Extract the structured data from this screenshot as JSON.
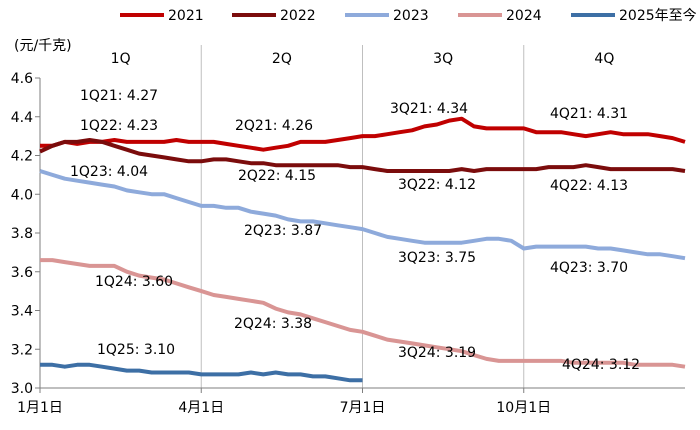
{
  "chart_data": {
    "type": "line",
    "ylabel": "(元/千克)",
    "ylim": [
      3.0,
      4.6
    ],
    "yticks": [
      "3.0",
      "3.2",
      "3.4",
      "3.6",
      "3.8",
      "4.0",
      "4.2",
      "4.4",
      "4.6"
    ],
    "xlim_week": [
      0,
      52
    ],
    "xticks": [
      {
        "label": "1月1日",
        "week": 0
      },
      {
        "label": "4月1日",
        "week": 13
      },
      {
        "label": "7月1日",
        "week": 26
      },
      {
        "label": "10月1日",
        "week": 39
      }
    ],
    "quarters": [
      "1Q",
      "2Q",
      "3Q",
      "4Q"
    ],
    "legend_position": "top",
    "series": [
      {
        "name": "2021",
        "color": "#c00000",
        "values": [
          4.25,
          4.25,
          4.27,
          4.26,
          4.27,
          4.27,
          4.28,
          4.27,
          4.27,
          4.27,
          4.27,
          4.28,
          4.27,
          4.27,
          4.27,
          4.26,
          4.25,
          4.24,
          4.23,
          4.24,
          4.25,
          4.27,
          4.27,
          4.27,
          4.28,
          4.29,
          4.3,
          4.3,
          4.31,
          4.32,
          4.33,
          4.35,
          4.36,
          4.38,
          4.39,
          4.35,
          4.34,
          4.34,
          4.34,
          4.34,
          4.32,
          4.32,
          4.32,
          4.31,
          4.3,
          4.31,
          4.32,
          4.31,
          4.31,
          4.31,
          4.3,
          4.29,
          4.27
        ]
      },
      {
        "name": "2022",
        "color": "#7b0c0c",
        "values": [
          4.22,
          4.25,
          4.27,
          4.27,
          4.28,
          4.27,
          4.25,
          4.23,
          4.21,
          4.2,
          4.19,
          4.18,
          4.17,
          4.17,
          4.18,
          4.18,
          4.17,
          4.16,
          4.16,
          4.15,
          4.15,
          4.15,
          4.15,
          4.15,
          4.15,
          4.14,
          4.14,
          4.13,
          4.12,
          4.12,
          4.12,
          4.12,
          4.12,
          4.12,
          4.13,
          4.12,
          4.13,
          4.13,
          4.13,
          4.13,
          4.13,
          4.14,
          4.14,
          4.14,
          4.15,
          4.14,
          4.13,
          4.13,
          4.13,
          4.13,
          4.13,
          4.13,
          4.12
        ]
      },
      {
        "name": "2023",
        "color": "#8eaadb",
        "values": [
          4.12,
          4.1,
          4.08,
          4.07,
          4.06,
          4.05,
          4.04,
          4.02,
          4.01,
          4.0,
          4.0,
          3.98,
          3.96,
          3.94,
          3.94,
          3.93,
          3.93,
          3.91,
          3.9,
          3.89,
          3.87,
          3.86,
          3.86,
          3.85,
          3.84,
          3.83,
          3.82,
          3.8,
          3.78,
          3.77,
          3.76,
          3.75,
          3.75,
          3.75,
          3.75,
          3.76,
          3.77,
          3.77,
          3.76,
          3.72,
          3.73,
          3.73,
          3.73,
          3.73,
          3.73,
          3.72,
          3.72,
          3.71,
          3.7,
          3.69,
          3.69,
          3.68,
          3.67
        ]
      },
      {
        "name": "2024",
        "color": "#d99594",
        "values": [
          3.66,
          3.66,
          3.65,
          3.64,
          3.63,
          3.63,
          3.63,
          3.6,
          3.58,
          3.57,
          3.56,
          3.54,
          3.52,
          3.5,
          3.48,
          3.47,
          3.46,
          3.45,
          3.44,
          3.41,
          3.39,
          3.38,
          3.36,
          3.34,
          3.32,
          3.3,
          3.29,
          3.27,
          3.25,
          3.24,
          3.23,
          3.22,
          3.21,
          3.2,
          3.19,
          3.17,
          3.15,
          3.14,
          3.14,
          3.14,
          3.14,
          3.14,
          3.14,
          3.13,
          3.13,
          3.13,
          3.13,
          3.13,
          3.12,
          3.12,
          3.12,
          3.12,
          3.11
        ]
      },
      {
        "name": "2025年至今",
        "color": "#3d6fa5",
        "values": [
          3.12,
          3.12,
          3.11,
          3.12,
          3.12,
          3.11,
          3.1,
          3.09,
          3.09,
          3.08,
          3.08,
          3.08,
          3.08,
          3.07,
          3.07,
          3.07,
          3.07,
          3.08,
          3.07,
          3.08,
          3.07,
          3.07,
          3.06,
          3.06,
          3.05,
          3.04,
          3.04
        ]
      }
    ],
    "annotations": [
      {
        "text": "1Q21: 4.27"
      },
      {
        "text": "1Q22: 4.23"
      },
      {
        "text": "1Q23: 4.04"
      },
      {
        "text": "1Q24: 3.60"
      },
      {
        "text": "1Q25: 3.10"
      },
      {
        "text": "2Q21: 4.26"
      },
      {
        "text": "2Q22: 4.15"
      },
      {
        "text": "2Q23: 3.87"
      },
      {
        "text": "2Q24: 3.38"
      },
      {
        "text": "3Q21: 4.34"
      },
      {
        "text": "3Q22: 4.12"
      },
      {
        "text": "3Q23: 3.75"
      },
      {
        "text": "3Q24: 3.19"
      },
      {
        "text": "4Q21: 4.31"
      },
      {
        "text": "4Q22: 4.13"
      },
      {
        "text": "4Q23: 3.70"
      },
      {
        "text": "4Q24: 3.12"
      }
    ]
  }
}
